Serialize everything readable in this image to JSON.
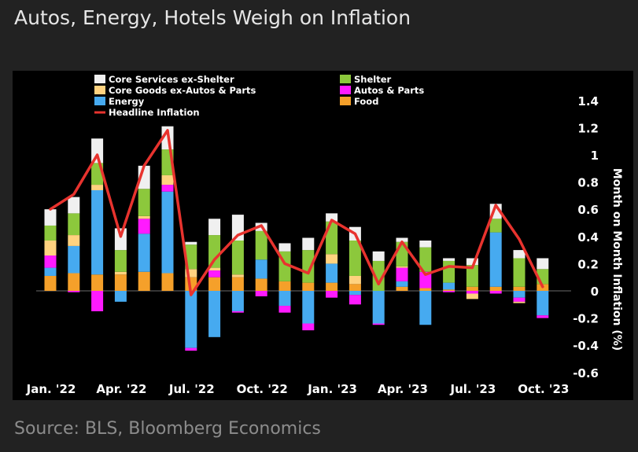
{
  "title": "Autos, Energy, Hotels Weigh on Inflation",
  "source": "Source: BLS, Bloomberg Economics",
  "chart_data": {
    "type": "bar",
    "stacked": true,
    "ylabel": "Month on Month Inflation (%)",
    "ylim": [
      -0.6,
      1.4
    ],
    "yticks": [
      -0.6,
      -0.4,
      -0.2,
      0,
      0.2,
      0.4,
      0.6,
      0.8,
      1,
      1.2,
      1.4
    ],
    "x_tick_labels": [
      "Jan. '22",
      "Apr. '22",
      "Jul. '22",
      "Oct. '22",
      "Jan. '23",
      "Apr. '23",
      "Jul. '23",
      "Oct. '23"
    ],
    "categories": [
      "Jan 2022",
      "Feb 2022",
      "Mar 2022",
      "Apr 2022",
      "May 2022",
      "Jun 2022",
      "Jul 2022",
      "Aug 2022",
      "Sep 2022",
      "Oct 2022",
      "Nov 2022",
      "Dec 2022",
      "Jan 2023",
      "Feb 2023",
      "Mar 2023",
      "Apr 2023",
      "May 2023",
      "Jun 2023",
      "Jul 2023",
      "Aug 2023",
      "Sep 2023",
      "Oct 2023"
    ],
    "legend_position": "top-left",
    "series": [
      {
        "name": "Food",
        "color": "#f5a02a",
        "values": [
          0.11,
          0.13,
          0.12,
          0.12,
          0.14,
          0.13,
          0.1,
          0.1,
          0.1,
          0.09,
          0.07,
          0.06,
          0.06,
          0.05,
          0.0,
          0.03,
          0.02,
          0.01,
          0.03,
          0.03,
          0.03,
          0.05
        ]
      },
      {
        "name": "Energy",
        "color": "#46aaf0",
        "values": [
          0.06,
          0.2,
          0.62,
          -0.08,
          0.28,
          0.6,
          -0.42,
          -0.34,
          -0.15,
          0.14,
          -0.11,
          -0.24,
          0.14,
          -0.03,
          -0.24,
          0.04,
          -0.25,
          0.05,
          0.0,
          0.4,
          -0.05,
          -0.18
        ]
      },
      {
        "name": "Autos & Parts",
        "color": "#ff1aff",
        "values": [
          0.09,
          -0.01,
          -0.15,
          0.0,
          0.11,
          0.05,
          -0.02,
          0.05,
          -0.01,
          -0.04,
          -0.05,
          -0.05,
          -0.05,
          -0.07,
          -0.01,
          0.1,
          0.12,
          -0.01,
          -0.02,
          -0.02,
          -0.03,
          -0.02
        ]
      },
      {
        "name": "Core Goods ex-Autos & Parts",
        "color": "#ffd27f",
        "values": [
          0.11,
          0.08,
          0.04,
          0.02,
          0.02,
          0.07,
          0.06,
          0.02,
          0.02,
          0.0,
          0.0,
          0.0,
          0.07,
          0.06,
          0.0,
          0.01,
          0.0,
          0.0,
          -0.04,
          0.0,
          -0.01,
          0.0
        ]
      },
      {
        "name": "Shelter",
        "color": "#8cc83c",
        "values": [
          0.11,
          0.16,
          0.16,
          0.16,
          0.2,
          0.19,
          0.18,
          0.24,
          0.25,
          0.21,
          0.22,
          0.24,
          0.24,
          0.26,
          0.22,
          0.18,
          0.18,
          0.16,
          0.16,
          0.1,
          0.21,
          0.11
        ]
      },
      {
        "name": "Core Services ex-Shelter",
        "color": "#f0f0f0",
        "values": [
          0.12,
          0.12,
          0.18,
          0.16,
          0.17,
          0.17,
          0.02,
          0.12,
          0.19,
          0.06,
          0.06,
          0.09,
          0.06,
          0.1,
          0.07,
          0.03,
          0.05,
          0.02,
          0.05,
          0.11,
          0.06,
          0.08
        ]
      },
      {
        "name": "Headline Inflation",
        "color": "#e8332e",
        "kind": "line",
        "values": [
          0.6,
          0.71,
          1.0,
          0.4,
          0.92,
          1.18,
          -0.03,
          0.23,
          0.41,
          0.48,
          0.2,
          0.13,
          0.52,
          0.42,
          0.05,
          0.36,
          0.12,
          0.18,
          0.17,
          0.63,
          0.38,
          0.03
        ]
      }
    ]
  }
}
